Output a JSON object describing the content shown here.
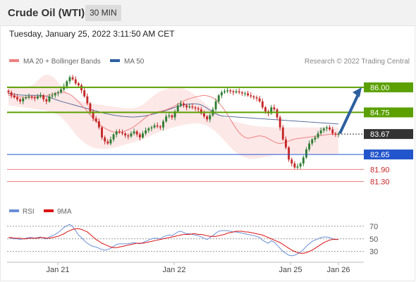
{
  "header": {
    "title": "Crude Oil (WTI)",
    "timeframe": "30 MIN",
    "datetime": "Tuesday, January 25, 2022 3:11:50 AM CET"
  },
  "colors": {
    "up_candle": "#2e7d32",
    "down_candle": "#c62828",
    "resistance": "#5ba000",
    "support": "#2255cc",
    "support_light": "#f08080",
    "current": "#333333",
    "ma20": "#f08080",
    "bands_fill": "#fde4e4",
    "ma50": "#5a6e9a",
    "arrow": "#2d5f9e",
    "rsi": "#6a8fd8",
    "rsi_ma": "#dd1111"
  },
  "chart_data": [
    {
      "type": "candlestick",
      "legend": [
        {
          "label": "MA 20 + Bollinger Bands",
          "color": "#f08080"
        },
        {
          "label": "MA 50",
          "color": "#2d5f9e"
        }
      ],
      "credit": "Research © 2022 Trading Central",
      "ylim": [
        81.0,
        86.7
      ],
      "x_ticks": [
        "Jan 21",
        "Jan 22",
        "Jan 25",
        "Jan 26"
      ],
      "levels": [
        {
          "value": 86.0,
          "label": "86.00",
          "kind": "resistance"
        },
        {
          "value": 84.75,
          "label": "84.75",
          "kind": "resistance"
        },
        {
          "value": 83.67,
          "label": "83.67",
          "kind": "current"
        },
        {
          "value": 82.65,
          "label": "82.65",
          "kind": "support"
        },
        {
          "value": 81.9,
          "label": "81.90",
          "kind": "support_light"
        },
        {
          "value": 81.3,
          "label": "81.30",
          "kind": "support_light"
        }
      ],
      "target_arrow": {
        "from": 83.7,
        "to": 86.0
      },
      "close": [
        85.75,
        85.6,
        85.5,
        85.4,
        85.3,
        85.45,
        85.5,
        85.55,
        85.5,
        85.45,
        85.55,
        85.6,
        85.4,
        85.3,
        85.55,
        85.6,
        85.7,
        85.75,
        85.9,
        86.05,
        86.3,
        86.5,
        86.4,
        86.2,
        86.1,
        85.85,
        85.55,
        85.2,
        84.8,
        84.45,
        84.3,
        84.0,
        83.5,
        83.3,
        83.2,
        83.4,
        83.65,
        83.8,
        83.75,
        83.7,
        83.6,
        83.55,
        83.7,
        83.8,
        83.65,
        83.5,
        83.7,
        83.85,
        83.95,
        84.0,
        84.1,
        84.05,
        84.0,
        84.3,
        84.55,
        84.6,
        84.5,
        84.8,
        85.1,
        85.2,
        85.1,
        85.0,
        85.05,
        85.0,
        84.95,
        84.9,
        84.7,
        84.55,
        84.4,
        84.6,
        84.9,
        85.3,
        85.6,
        85.75,
        85.8,
        85.85,
        85.8,
        85.75,
        85.8,
        85.75,
        85.7,
        85.7,
        85.6,
        85.55,
        85.5,
        85.45,
        85.3,
        85.0,
        84.8,
        84.7,
        85.0,
        84.9,
        84.5,
        84.0,
        83.4,
        83.0,
        82.4,
        82.2,
        82.0,
        82.05,
        82.2,
        82.5,
        82.9,
        83.2,
        83.4,
        83.5,
        83.7,
        83.85,
        83.95,
        84.0,
        83.9,
        83.7,
        83.65,
        83.67
      ],
      "indicators": {
        "ma20": [
          85.6,
          85.58,
          85.56,
          85.54,
          85.52,
          85.51,
          85.5,
          85.5,
          85.5,
          85.51,
          85.52,
          85.54,
          85.56,
          85.58,
          85.62,
          85.66,
          85.7,
          85.74,
          85.76,
          85.75,
          85.72,
          85.65,
          85.55,
          85.42,
          85.28,
          85.12,
          84.96,
          84.8,
          84.62,
          84.46,
          84.32,
          84.18,
          84.06,
          83.96,
          83.88,
          83.82,
          83.78,
          83.76,
          83.76,
          83.78,
          83.82,
          83.88,
          83.95,
          84.04,
          84.14,
          84.26,
          84.38,
          84.5,
          84.6,
          84.68,
          84.74,
          84.78,
          84.8,
          84.84,
          84.88,
          84.94,
          85.0,
          85.08,
          85.16,
          85.24,
          85.32,
          85.38,
          85.44,
          85.48,
          85.52,
          85.55,
          85.58,
          85.6,
          85.58,
          85.54,
          85.48,
          85.38,
          85.24,
          85.06,
          84.86,
          84.64,
          84.4,
          84.16,
          83.94,
          83.74,
          83.6,
          83.5,
          83.46,
          83.48,
          83.52,
          83.56,
          83.58,
          83.56,
          83.52,
          83.44,
          83.36,
          83.28,
          83.22,
          83.2,
          83.22,
          83.26,
          83.32,
          83.38,
          83.42,
          83.44,
          83.46,
          83.48,
          83.5,
          83.52,
          83.54,
          83.56,
          83.58,
          83.6,
          83.62,
          83.64,
          83.66,
          83.66,
          83.66,
          83.66
        ],
        "bb_upper": [
          86.05,
          86.05,
          86.04,
          86.03,
          86.02,
          86.02,
          86.03,
          86.05,
          86.1,
          86.2,
          86.34,
          86.48,
          86.58,
          86.63,
          86.62,
          86.55,
          86.42,
          86.26,
          86.08,
          85.9,
          85.74,
          85.6,
          85.5,
          85.42,
          85.36,
          85.31,
          85.27,
          85.23,
          85.2,
          85.18,
          85.16,
          85.14,
          85.12,
          85.1,
          85.08,
          85.06,
          85.04,
          85.02,
          85.0,
          84.98,
          84.96,
          84.95,
          84.95,
          84.97,
          85.0,
          85.06,
          85.14,
          85.25,
          85.38,
          85.5,
          85.62,
          85.72,
          85.8,
          85.86,
          85.91,
          85.95,
          85.98,
          86.0,
          86.0,
          85.98,
          85.94,
          85.88,
          85.8,
          85.7,
          85.59,
          85.48,
          85.36,
          85.24,
          85.12,
          85.0,
          84.88,
          84.77,
          84.67,
          84.58,
          84.5,
          84.43,
          84.37,
          84.32,
          84.28,
          84.24,
          84.2,
          84.17,
          84.14,
          84.11,
          84.09,
          84.07,
          84.05,
          84.04,
          84.03,
          84.02,
          84.01,
          84.0,
          84.0,
          84.0,
          84.0,
          84.0,
          84.0,
          84.0,
          84.0,
          84.0,
          84.0,
          84.0,
          84.0,
          84.0,
          84.0,
          84.0,
          84.0,
          84.0,
          84.0,
          84.0,
          84.0,
          84.0,
          84.0,
          84.0
        ],
        "bb_lower": [
          85.1,
          85.08,
          85.06,
          85.04,
          85.02,
          85.0,
          84.98,
          84.96,
          84.94,
          84.92,
          84.9,
          84.88,
          84.86,
          84.83,
          84.8,
          84.76,
          84.7,
          84.62,
          84.5,
          84.36,
          84.2,
          84.02,
          83.84,
          83.66,
          83.5,
          83.36,
          83.24,
          83.14,
          83.06,
          83.0,
          82.96,
          82.94,
          82.93,
          82.93,
          82.94,
          82.96,
          82.99,
          83.02,
          83.06,
          83.1,
          83.14,
          83.18,
          83.22,
          83.26,
          83.31,
          83.36,
          83.42,
          83.48,
          83.54,
          83.6,
          83.67,
          83.73,
          83.79,
          83.84,
          83.89,
          83.94,
          83.98,
          84.02,
          84.06,
          84.09,
          84.12,
          84.15,
          84.17,
          84.19,
          84.2,
          84.2,
          84.18,
          84.14,
          84.08,
          84.0,
          83.9,
          83.78,
          83.64,
          83.48,
          83.32,
          83.16,
          83.0,
          82.86,
          82.74,
          82.64,
          82.56,
          82.5,
          82.46,
          82.44,
          82.44,
          82.45,
          82.47,
          82.5,
          82.53,
          82.56,
          82.59,
          82.62,
          82.64,
          82.66,
          82.67,
          82.68,
          82.68,
          82.68,
          82.68,
          82.68,
          82.68,
          82.68,
          82.68,
          82.68,
          82.68,
          82.68,
          82.68,
          82.68,
          82.68,
          82.68,
          82.68,
          82.68,
          82.68,
          82.68
        ],
        "ma50": [
          85.7,
          85.68,
          85.66,
          85.64,
          85.62,
          85.61,
          85.6,
          85.6,
          85.6,
          85.6,
          85.6,
          85.6,
          85.58,
          85.55,
          85.5,
          85.45,
          85.4,
          85.35,
          85.3,
          85.26,
          85.22,
          85.18,
          85.14,
          85.1,
          85.06,
          85.02,
          84.98,
          84.94,
          84.9,
          84.86,
          84.82,
          84.78,
          84.74,
          84.7,
          84.67,
          84.64,
          84.61,
          84.59,
          84.57,
          84.55,
          84.54,
          84.53,
          84.52,
          84.52,
          84.53,
          84.54,
          84.56,
          84.58,
          84.61,
          84.64,
          84.68,
          84.72,
          84.76,
          84.8,
          84.85,
          84.9,
          84.95,
          85.0,
          85.04,
          85.08,
          85.12,
          85.15,
          85.17,
          85.18,
          85.18,
          85.16,
          85.12,
          85.05,
          84.96,
          84.86,
          84.76,
          84.68,
          84.62,
          84.58,
          84.56,
          84.55,
          84.54,
          84.53,
          84.52,
          84.51,
          84.5,
          84.49,
          84.48,
          84.47,
          84.46,
          84.45,
          84.44,
          84.43,
          84.42,
          84.41,
          84.4,
          84.39,
          84.38,
          84.37,
          84.36,
          84.35,
          84.34,
          84.33,
          84.32,
          84.31,
          84.3,
          84.29,
          84.28,
          84.27,
          84.26,
          84.25,
          84.24,
          84.23,
          84.22,
          84.21,
          84.2,
          84.19,
          84.18,
          84.17
        ]
      }
    },
    {
      "type": "line",
      "legend": [
        {
          "label": "RSI",
          "color": "#6a8fd8"
        },
        {
          "label": "9MA",
          "color": "#dd1111"
        }
      ],
      "ylim": [
        15,
        80
      ],
      "y_ticks": [
        70,
        50,
        30
      ],
      "x_ticks": [
        "Jan 21",
        "Jan 22",
        "Jan 25",
        "Jan 26"
      ],
      "series": [
        {
          "name": "RSI",
          "values": [
            52,
            51,
            50,
            50,
            49,
            50,
            51,
            52,
            52,
            51,
            52,
            53,
            51,
            50,
            53,
            55,
            57,
            60,
            64,
            68,
            71,
            73,
            69,
            63,
            56,
            52,
            47,
            43,
            40,
            38,
            37,
            35,
            33,
            32,
            33,
            35,
            38,
            41,
            42,
            42,
            42,
            42,
            43,
            44,
            43,
            42,
            44,
            46,
            48,
            50,
            51,
            51,
            50,
            53,
            55,
            56,
            55,
            58,
            61,
            62,
            60,
            58,
            58,
            57,
            56,
            55,
            53,
            51,
            49,
            52,
            55,
            59,
            62,
            63,
            63,
            63,
            62,
            61,
            61,
            60,
            59,
            58,
            57,
            56,
            55,
            54,
            52,
            48,
            45,
            43,
            47,
            45,
            40,
            35,
            30,
            27,
            24,
            23,
            24,
            26,
            29,
            33,
            38,
            42,
            46,
            48,
            50,
            52,
            53,
            53,
            52,
            50,
            49,
            49
          ]
        },
        {
          "name": "9MA",
          "values": [
            52,
            52,
            51,
            51,
            51,
            50,
            50,
            51,
            51,
            51,
            51,
            52,
            52,
            51,
            51,
            52,
            53,
            54,
            56,
            58,
            61,
            63,
            65,
            66,
            66,
            65,
            63,
            61,
            57,
            53,
            49,
            46,
            43,
            41,
            39,
            37,
            36,
            36,
            37,
            38,
            39,
            40,
            41,
            42,
            43,
            43,
            43,
            44,
            45,
            46,
            47,
            48,
            49,
            50,
            51,
            52,
            53,
            54,
            55,
            56,
            57,
            57,
            57,
            58,
            58,
            57,
            57,
            56,
            55,
            54,
            54,
            54,
            55,
            56,
            57,
            59,
            60,
            61,
            62,
            62,
            62,
            61,
            61,
            60,
            59,
            58,
            57,
            56,
            54,
            52,
            50,
            48,
            46,
            44,
            41,
            38,
            35,
            32,
            30,
            28,
            27,
            27,
            28,
            30,
            32,
            35,
            38,
            41,
            44,
            46,
            48,
            49,
            49,
            49
          ]
        }
      ]
    }
  ]
}
